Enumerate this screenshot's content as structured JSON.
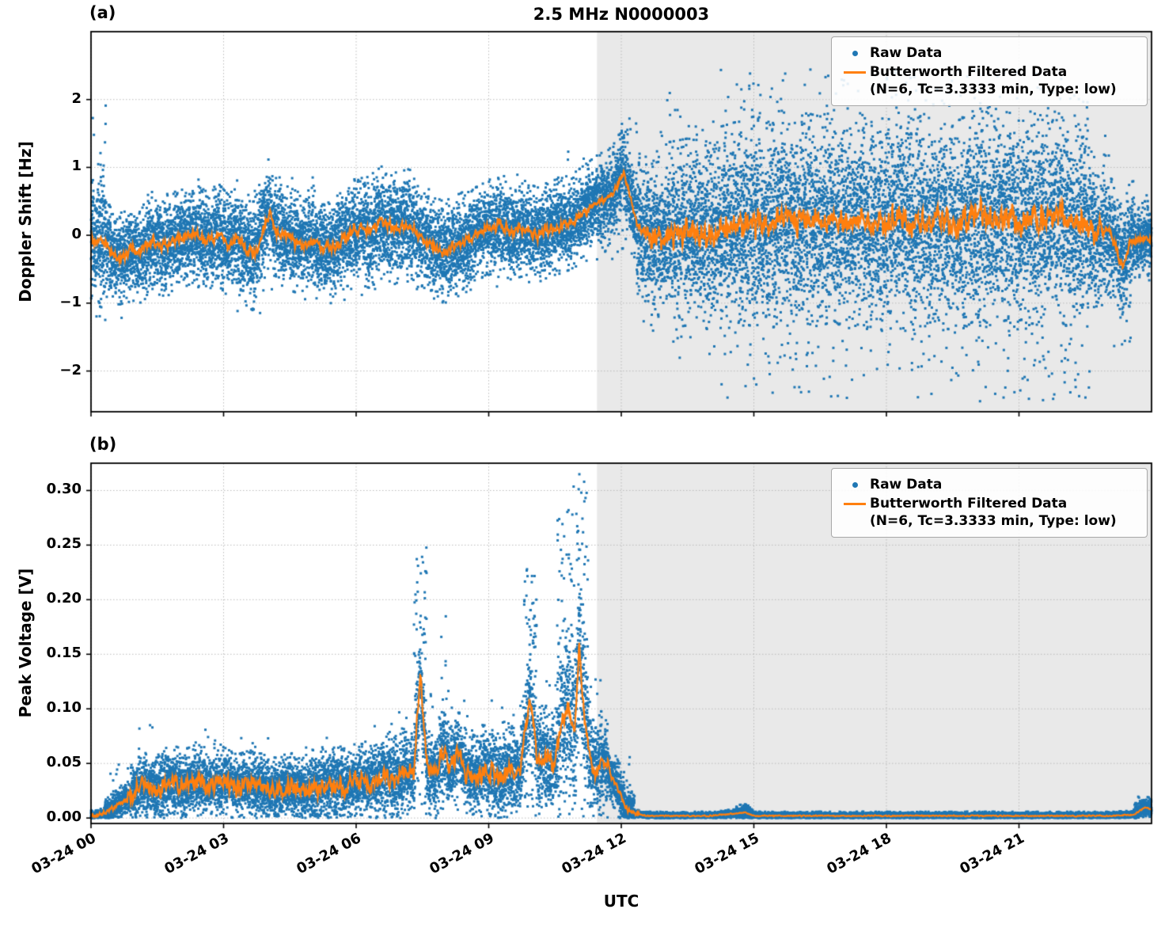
{
  "figure": {
    "title": "2.5 MHz N0000003",
    "xlabel": "UTC",
    "colors": {
      "raw": "#1f77b4",
      "filtered": "#ff7f0e",
      "shade": "#e9e9e9",
      "grid": "#bbbbbb",
      "axis": "#000000"
    },
    "legend": {
      "raw_label": "Raw Data",
      "filtered_label": "Butterworth Filtered Data",
      "filtered_sublabel": "(N=6, Tc=3.3333 min, Type: low)"
    },
    "x_ticks": {
      "hours": [
        0,
        3,
        6,
        9,
        12,
        15,
        18,
        21
      ],
      "labels": [
        "03-24 00",
        "03-24 03",
        "03-24 06",
        "03-24 09",
        "03-24 12",
        "03-24 15",
        "03-24 18",
        "03-24 21"
      ]
    },
    "xlim_hours": [
      0,
      24
    ],
    "shade_start_hour": 11.45,
    "shade_end_hour": 24
  },
  "chart_data": [
    {
      "id": "panel-a",
      "panel_label": "(a)",
      "type": "scatter",
      "title": "2.5 MHz N0000003",
      "ylabel": "Doppler Shift [Hz]",
      "ylim": [
        -2.6,
        3.0
      ],
      "yticks": [
        -2,
        -1,
        0,
        1,
        2
      ],
      "ytick_labels": [
        "−2",
        "−1",
        "0",
        "1",
        "2"
      ],
      "points": 20000,
      "series": [
        {
          "name": "Raw Data",
          "marker": "dot",
          "color": "#1f77b4"
        },
        {
          "name": "Butterworth Filtered Data",
          "marker": "line",
          "color": "#ff7f0e"
        }
      ],
      "filtered_keypoints": [
        [
          0,
          -0.05
        ],
        [
          0.3,
          -0.1
        ],
        [
          0.5,
          -0.3
        ],
        [
          0.7,
          -0.35
        ],
        [
          0.9,
          -0.2
        ],
        [
          1.1,
          -0.25
        ],
        [
          1.4,
          -0.1
        ],
        [
          1.7,
          -0.15
        ],
        [
          2,
          -0.05
        ],
        [
          2.3,
          0.05
        ],
        [
          2.6,
          -0.1
        ],
        [
          2.9,
          0
        ],
        [
          3.1,
          -0.15
        ],
        [
          3.3,
          -0.05
        ],
        [
          3.5,
          -0.2
        ],
        [
          3.7,
          -0.3
        ],
        [
          3.9,
          0.1
        ],
        [
          4.05,
          0.35
        ],
        [
          4.2,
          0.05
        ],
        [
          4.5,
          -0.05
        ],
        [
          4.8,
          -0.15
        ],
        [
          5,
          -0.05
        ],
        [
          5.2,
          -0.2
        ],
        [
          5.5,
          -0.15
        ],
        [
          5.8,
          0
        ],
        [
          6.1,
          0.1
        ],
        [
          6.3,
          0.05
        ],
        [
          6.6,
          0.2
        ],
        [
          6.9,
          0.1
        ],
        [
          7.2,
          0.15
        ],
        [
          7.5,
          -0.05
        ],
        [
          7.8,
          -0.2
        ],
        [
          8,
          -0.25
        ],
        [
          8.3,
          -0.15
        ],
        [
          8.6,
          -0.05
        ],
        [
          8.9,
          0.1
        ],
        [
          9.2,
          0.15
        ],
        [
          9.5,
          0.05
        ],
        [
          9.8,
          0.1
        ],
        [
          10.1,
          0
        ],
        [
          10.4,
          0.1
        ],
        [
          10.7,
          0.15
        ],
        [
          11,
          0.25
        ],
        [
          11.3,
          0.4
        ],
        [
          11.5,
          0.5
        ],
        [
          11.7,
          0.55
        ],
        [
          11.9,
          0.7
        ],
        [
          12.05,
          0.95
        ],
        [
          12.2,
          0.55
        ],
        [
          12.35,
          0.2
        ],
        [
          12.5,
          0.05
        ],
        [
          12.8,
          -0.05
        ],
        [
          13.1,
          0
        ],
        [
          13.5,
          0.05
        ],
        [
          14,
          0
        ],
        [
          14.5,
          0.1
        ],
        [
          15,
          0.2
        ],
        [
          15.3,
          0.1
        ],
        [
          15.6,
          0.3
        ],
        [
          15.9,
          0.15
        ],
        [
          16.2,
          0.25
        ],
        [
          16.5,
          0.2
        ],
        [
          16.8,
          0.3
        ],
        [
          17.1,
          0.15
        ],
        [
          17.4,
          0.25
        ],
        [
          17.7,
          0.1
        ],
        [
          18,
          0.2
        ],
        [
          18.3,
          0.3
        ],
        [
          18.6,
          0.15
        ],
        [
          18.9,
          0.25
        ],
        [
          19.2,
          0.3
        ],
        [
          19.5,
          0.1
        ],
        [
          19.8,
          0.2
        ],
        [
          20.1,
          0.35
        ],
        [
          20.4,
          0.2
        ],
        [
          20.7,
          0.3
        ],
        [
          21,
          0.15
        ],
        [
          21.3,
          0.25
        ],
        [
          21.6,
          0.2
        ],
        [
          21.9,
          0.3
        ],
        [
          22.2,
          0.15
        ],
        [
          22.5,
          0.2
        ],
        [
          22.8,
          0
        ],
        [
          23,
          0.1
        ],
        [
          23.2,
          -0.2
        ],
        [
          23.35,
          -0.5
        ],
        [
          23.5,
          -0.1
        ],
        [
          23.7,
          -0.05
        ],
        [
          24,
          -0.05
        ]
      ],
      "line_noise": [
        {
          "t0": 0,
          "t1": 11.3,
          "a": 0.12
        },
        {
          "t0": 11.3,
          "t1": 12.5,
          "a": 0.08
        },
        {
          "t0": 12.5,
          "t1": 22.9,
          "a": 0.28
        },
        {
          "t0": 22.9,
          "t1": 24,
          "a": 0.1
        }
      ],
      "scatter_band": [
        {
          "t0": 0,
          "t1": 0.35,
          "s": 0.45,
          "tf": 0.05,
          "lo": -1.4,
          "hi": 2.0
        },
        {
          "t0": 0.35,
          "t1": 1.2,
          "s": 0.3,
          "tf": 0.02,
          "lo": -1.35,
          "hi": 0.6
        },
        {
          "t0": 1.2,
          "t1": 3.3,
          "s": 0.3,
          "tf": 0.02,
          "lo": -1.0,
          "hi": 0.85
        },
        {
          "t0": 3.3,
          "t1": 4.3,
          "s": 0.33,
          "tf": 0.03,
          "lo": -1.25,
          "hi": 0.95
        },
        {
          "t0": 4.3,
          "t1": 6.2,
          "s": 0.3,
          "tf": 0.02,
          "lo": -1.0,
          "hi": 0.9
        },
        {
          "t0": 6.2,
          "t1": 7.4,
          "s": 0.33,
          "tf": 0.02,
          "lo": -0.9,
          "hi": 1.0
        },
        {
          "t0": 7.4,
          "t1": 8.6,
          "s": 0.3,
          "tf": 0.02,
          "lo": -1.0,
          "hi": 0.7
        },
        {
          "t0": 8.6,
          "t1": 10.7,
          "s": 0.28,
          "tf": 0.02,
          "lo": -0.8,
          "hi": 0.9
        },
        {
          "t0": 10.7,
          "t1": 11.9,
          "s": 0.28,
          "tf": 0.03,
          "lo": -0.5,
          "hi": 1.4
        },
        {
          "t0": 11.9,
          "t1": 12.35,
          "s": 0.3,
          "tf": 0.1,
          "lo": -0.4,
          "hi": 1.8
        },
        {
          "t0": 12.35,
          "t1": 13.0,
          "s": 0.45,
          "tf": 0.06,
          "lo": -1.5,
          "hi": 1.9
        },
        {
          "t0": 13.0,
          "t1": 14.2,
          "s": 0.55,
          "tf": 0.08,
          "lo": -1.9,
          "hi": 2.1
        },
        {
          "t0": 14.2,
          "t1": 22.6,
          "s": 0.62,
          "tf": 0.1,
          "lo": -2.45,
          "hi": 2.45
        },
        {
          "t0": 22.6,
          "t1": 23.1,
          "s": 0.45,
          "tf": 0.04,
          "lo": -1.6,
          "hi": 1.6
        },
        {
          "t0": 23.1,
          "t1": 23.6,
          "s": 0.35,
          "tf": 0.06,
          "lo": -1.7,
          "hi": 0.8
        },
        {
          "t0": 23.6,
          "t1": 24,
          "s": 0.22,
          "tf": 0.03,
          "lo": -1.2,
          "hi": 0.6
        }
      ]
    },
    {
      "id": "panel-b",
      "panel_label": "(b)",
      "type": "scatter",
      "ylabel": "Peak Voltage [V]",
      "ylim": [
        -0.005,
        0.325
      ],
      "yticks": [
        0,
        0.05,
        0.1,
        0.15,
        0.2,
        0.25,
        0.3
      ],
      "ytick_labels": [
        "0.00",
        "0.05",
        "0.10",
        "0.15",
        "0.20",
        "0.25",
        "0.30"
      ],
      "points": 20000,
      "series": [
        {
          "name": "Raw Data",
          "marker": "dot",
          "color": "#1f77b4"
        },
        {
          "name": "Butterworth Filtered Data",
          "marker": "line",
          "color": "#ff7f0e"
        }
      ],
      "filtered_keypoints": [
        [
          0,
          0.002
        ],
        [
          0.3,
          0.004
        ],
        [
          0.6,
          0.012
        ],
        [
          0.9,
          0.02
        ],
        [
          1.2,
          0.03
        ],
        [
          1.5,
          0.025
        ],
        [
          1.8,
          0.035
        ],
        [
          2.1,
          0.03
        ],
        [
          2.4,
          0.035
        ],
        [
          2.7,
          0.03
        ],
        [
          3,
          0.035
        ],
        [
          3.3,
          0.028
        ],
        [
          3.6,
          0.032
        ],
        [
          3.9,
          0.028
        ],
        [
          4.2,
          0.025
        ],
        [
          4.5,
          0.03
        ],
        [
          4.8,
          0.025
        ],
        [
          5.1,
          0.028
        ],
        [
          5.4,
          0.032
        ],
        [
          5.7,
          0.028
        ],
        [
          6,
          0.035
        ],
        [
          6.3,
          0.03
        ],
        [
          6.6,
          0.04
        ],
        [
          6.9,
          0.035
        ],
        [
          7.1,
          0.045
        ],
        [
          7.3,
          0.04
        ],
        [
          7.45,
          0.13
        ],
        [
          7.6,
          0.045
        ],
        [
          7.8,
          0.04
        ],
        [
          7.95,
          0.065
        ],
        [
          8.1,
          0.045
        ],
        [
          8.3,
          0.06
        ],
        [
          8.5,
          0.04
        ],
        [
          8.7,
          0.035
        ],
        [
          8.9,
          0.045
        ],
        [
          9.1,
          0.04
        ],
        [
          9.3,
          0.035
        ],
        [
          9.5,
          0.045
        ],
        [
          9.7,
          0.04
        ],
        [
          9.95,
          0.115
        ],
        [
          10.1,
          0.05
        ],
        [
          10.3,
          0.055
        ],
        [
          10.5,
          0.05
        ],
        [
          10.65,
          0.09
        ],
        [
          10.8,
          0.1
        ],
        [
          10.95,
          0.085
        ],
        [
          11.05,
          0.16
        ],
        [
          11.15,
          0.1
        ],
        [
          11.3,
          0.05
        ],
        [
          11.45,
          0.045
        ],
        [
          11.6,
          0.055
        ],
        [
          11.75,
          0.04
        ],
        [
          11.9,
          0.03
        ],
        [
          12.1,
          0.01
        ],
        [
          12.3,
          0.004
        ],
        [
          12.6,
          0.002
        ],
        [
          13,
          0.002
        ],
        [
          14,
          0.002
        ],
        [
          14.8,
          0.005
        ],
        [
          15,
          0.002
        ],
        [
          16,
          0.002
        ],
        [
          18,
          0.002
        ],
        [
          20,
          0.002
        ],
        [
          22,
          0.002
        ],
        [
          23,
          0.002
        ],
        [
          23.6,
          0.003
        ],
        [
          23.85,
          0.01
        ],
        [
          24,
          0.008
        ]
      ],
      "line_noise": [
        {
          "t0": 0,
          "t1": 0.8,
          "a": 0.003
        },
        {
          "t0": 0.8,
          "t1": 11.8,
          "a": 0.012
        },
        {
          "t0": 11.8,
          "t1": 12.4,
          "a": 0.004
        },
        {
          "t0": 12.4,
          "t1": 24,
          "a": 0.0008
        }
      ],
      "scatter_band": [
        {
          "t0": 0,
          "t1": 0.3,
          "s": 0.002,
          "tf": 0.01,
          "lo": 0,
          "hi": 0.01
        },
        {
          "t0": 0.3,
          "t1": 0.9,
          "s": 0.006,
          "tf": 0.02,
          "lo": 0,
          "hi": 0.05
        },
        {
          "t0": 0.9,
          "t1": 1.6,
          "s": 0.012,
          "tf": 0.03,
          "lo": 0,
          "hi": 0.09
        },
        {
          "t0": 1.6,
          "t1": 2.8,
          "s": 0.013,
          "tf": 0.02,
          "lo": 0,
          "hi": 0.085
        },
        {
          "t0": 2.8,
          "t1": 5.0,
          "s": 0.012,
          "tf": 0.02,
          "lo": 0,
          "hi": 0.075
        },
        {
          "t0": 5.0,
          "t1": 6.4,
          "s": 0.014,
          "tf": 0.02,
          "lo": 0,
          "hi": 0.08
        },
        {
          "t0": 6.4,
          "t1": 7.3,
          "s": 0.016,
          "tf": 0.03,
          "lo": 0,
          "hi": 0.1
        },
        {
          "t0": 7.3,
          "t1": 7.6,
          "s": 0.02,
          "tf": 0.25,
          "lo": 0,
          "hi": 0.26
        },
        {
          "t0": 7.6,
          "t1": 7.85,
          "s": 0.016,
          "tf": 0.03,
          "lo": 0,
          "hi": 0.12
        },
        {
          "t0": 7.85,
          "t1": 8.1,
          "s": 0.018,
          "tf": 0.15,
          "lo": 0,
          "hi": 0.19
        },
        {
          "t0": 8.1,
          "t1": 9.3,
          "s": 0.016,
          "tf": 0.03,
          "lo": 0,
          "hi": 0.11
        },
        {
          "t0": 9.3,
          "t1": 9.8,
          "s": 0.016,
          "tf": 0.04,
          "lo": 0,
          "hi": 0.115
        },
        {
          "t0": 9.8,
          "t1": 10.1,
          "s": 0.02,
          "tf": 0.3,
          "lo": 0,
          "hi": 0.23
        },
        {
          "t0": 10.1,
          "t1": 10.55,
          "s": 0.02,
          "tf": 0.05,
          "lo": 0,
          "hi": 0.135
        },
        {
          "t0": 10.55,
          "t1": 11.25,
          "s": 0.035,
          "tf": 0.22,
          "lo": 0,
          "hi": 0.315
        },
        {
          "t0": 11.25,
          "t1": 11.7,
          "s": 0.02,
          "tf": 0.06,
          "lo": 0,
          "hi": 0.135
        },
        {
          "t0": 11.7,
          "t1": 12.3,
          "s": 0.01,
          "tf": 0.02,
          "lo": 0,
          "hi": 0.06
        },
        {
          "t0": 12.3,
          "t1": 14.6,
          "s": 0.0015,
          "tf": 0.002,
          "lo": 0,
          "hi": 0.006
        },
        {
          "t0": 14.6,
          "t1": 15.0,
          "s": 0.003,
          "tf": 0.01,
          "lo": 0,
          "hi": 0.012
        },
        {
          "t0": 15.0,
          "t1": 23.6,
          "s": 0.0015,
          "tf": 0.002,
          "lo": 0,
          "hi": 0.006
        },
        {
          "t0": 23.6,
          "t1": 24,
          "s": 0.004,
          "tf": 0.05,
          "lo": 0,
          "hi": 0.02
        }
      ]
    }
  ]
}
